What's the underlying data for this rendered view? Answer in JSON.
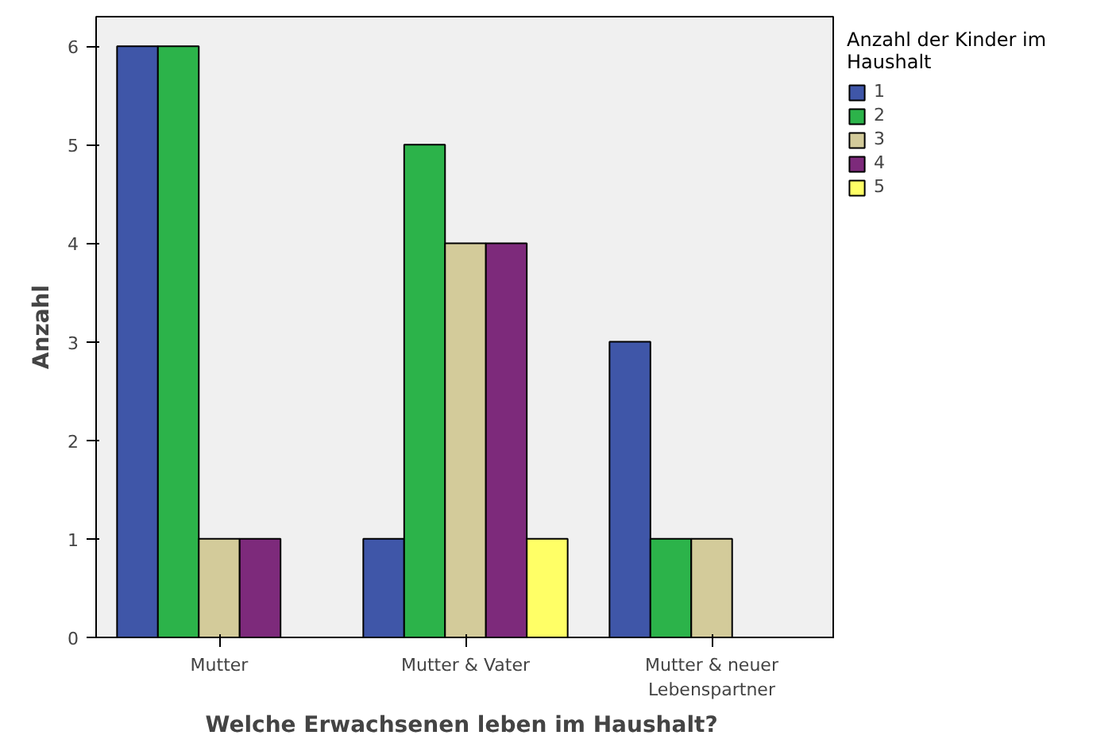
{
  "chart_data": {
    "type": "bar",
    "xlabel": "Welche Erwachsenen leben  im Haushalt?",
    "ylabel": "Anzahl",
    "legend_title": "Anzahl der Kinder im Haushalt",
    "categories": [
      "Mutter",
      "Mutter & Vater",
      "Mutter & neuer Lebenspartner"
    ],
    "series": [
      {
        "name": "1",
        "color": "#3f56a8",
        "values": [
          6,
          1,
          3
        ]
      },
      {
        "name": "2",
        "color": "#2cb34a",
        "values": [
          6,
          5,
          1
        ]
      },
      {
        "name": "3",
        "color": "#d3cb9a",
        "values": [
          1,
          4,
          1
        ]
      },
      {
        "name": "4",
        "color": "#7d2a7b",
        "values": [
          1,
          4,
          null
        ]
      },
      {
        "name": "5",
        "color": "#ffff66",
        "values": [
          null,
          1,
          null
        ]
      }
    ],
    "ylim": [
      0,
      6.3
    ],
    "yticks": [
      0,
      1,
      2,
      3,
      4,
      5,
      6
    ],
    "grid": false,
    "legend": "right"
  }
}
